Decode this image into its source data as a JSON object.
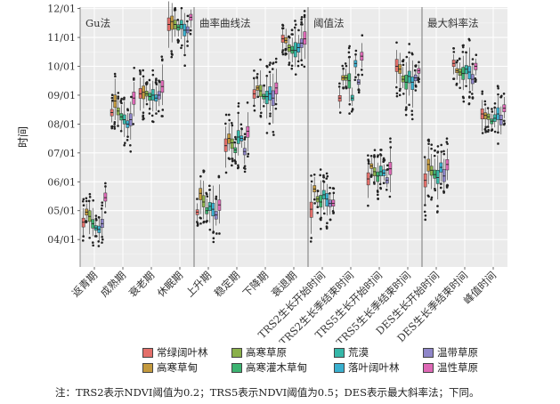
{
  "chart_data": {
    "type": "boxplot",
    "ylabel": "时间",
    "y_ticks": [
      "04/01",
      "05/01",
      "06/01",
      "07/01",
      "08/01",
      "09/01",
      "10/01",
      "11/01",
      "12/01"
    ],
    "y_range_months": [
      3.05,
      12.05
    ],
    "panels": [
      {
        "title": "Gu法",
        "categories": [
          "返青期",
          "成熟期",
          "衰老期",
          "休眠期"
        ]
      },
      {
        "title": "曲率曲线法",
        "categories": [
          "上升期",
          "稳定期",
          "下降期",
          "衰退期"
        ]
      },
      {
        "title": "阈值法",
        "categories": [
          "TRS2生长开始时间",
          "TRS2生长季结束时间",
          "TRS5生长开始时间",
          "TRS5生长季结束时间"
        ]
      },
      {
        "title": "最大斜率法",
        "categories": [
          "DES生长开始时间",
          "DES生长季结束时间",
          "峰值时间"
        ]
      }
    ],
    "series": [
      {
        "name": "常绿阔叶林",
        "color": "#e36f6a"
      },
      {
        "name": "高寒草甸",
        "color": "#c49a3e"
      },
      {
        "name": "高寒草原",
        "color": "#8ab04a"
      },
      {
        "name": "高寒灌木草甸",
        "color": "#3cb371"
      },
      {
        "name": "荒漠",
        "color": "#35b7a8"
      },
      {
        "name": "落叶阔叶林",
        "color": "#3ab0cf"
      },
      {
        "name": "温带草原",
        "color": "#8f86c9"
      },
      {
        "name": "温性草原",
        "color": "#de69b6"
      }
    ],
    "medians_month": [
      [
        4.6,
        4.95,
        4.8,
        4.55,
        4.4,
        4.35,
        4.55,
        5.45
      ],
      [
        8.4,
        8.8,
        8.45,
        8.25,
        8.15,
        8.0,
        8.15,
        8.9
      ],
      [
        9.05,
        9.1,
        9.05,
        8.95,
        9.0,
        8.9,
        9.0,
        9.3
      ],
      [
        11.45,
        11.55,
        11.45,
        11.35,
        11.45,
        11.25,
        11.25,
        11.7
      ],
      [
        4.95,
        5.6,
        5.3,
        5.0,
        5.15,
        5.05,
        4.85,
        5.2
      ],
      [
        7.25,
        7.5,
        7.35,
        7.1,
        7.55,
        7.5,
        7.05,
        7.75
      ],
      [
        9.05,
        9.25,
        9.15,
        8.95,
        8.95,
        9.05,
        8.9,
        9.25
      ],
      [
        10.95,
        10.9,
        10.65,
        10.55,
        10.55,
        10.65,
        10.8,
        10.95
      ],
      [
        5.05,
        5.75,
        5.4,
        5.3,
        5.55,
        5.4,
        5.25,
        5.25
      ],
      [
        8.9,
        9.6,
        9.6,
        9.5,
        8.9,
        10.1,
        9.45,
        10.35
      ],
      [
        6.1,
        6.55,
        6.35,
        6.2,
        6.35,
        6.3,
        6.05,
        6.45
      ],
      [
        10.0,
        9.9,
        9.55,
        9.45,
        9.65,
        9.45,
        9.6,
        9.85
      ],
      [
        6.05,
        6.6,
        6.4,
        6.25,
        6.15,
        6.5,
        6.2,
        6.6
      ],
      [
        10.1,
        9.85,
        9.8,
        9.75,
        9.9,
        9.8,
        9.55,
        10.0
      ],
      [
        8.35,
        8.3,
        8.25,
        8.1,
        8.2,
        8.35,
        8.15,
        8.55
      ]
    ]
  },
  "note": "注：TRS2表示NDVI阈值为0.2；TRS5表示NDVI阈值为0.5；DES表示最大斜率法；下同。"
}
